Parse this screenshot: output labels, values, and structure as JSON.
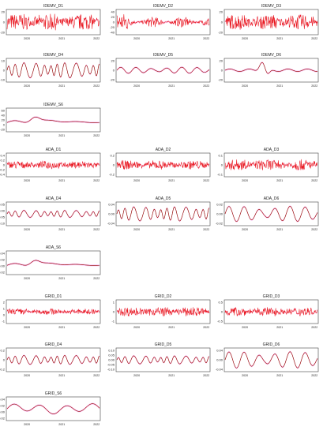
{
  "colors": {
    "signal": "#e8121a",
    "trend": "#5a1200",
    "band": "#f07cf0",
    "frame": "#444444",
    "text": "#222222"
  },
  "chart_data": [
    {
      "type": "line",
      "title": "IDEMV_D1",
      "yticks": [
        "20",
        "0",
        "-20"
      ],
      "ylim": [
        -20,
        20
      ],
      "xticks": [
        "2020",
        "2021",
        "2022"
      ],
      "style": "noise",
      "amplitude": 0.75
    },
    {
      "type": "line",
      "title": "IDEMV_D2",
      "yticks": [
        "40",
        "20",
        "0",
        "-20",
        "-40"
      ],
      "ylim": [
        -40,
        40
      ],
      "xticks": [
        "2020",
        "2021",
        "2022"
      ],
      "style": "decay",
      "amplitude": 0.8
    },
    {
      "type": "line",
      "title": "IDEMV_D3",
      "yticks": [
        "20",
        "0",
        "-20"
      ],
      "ylim": [
        -20,
        20
      ],
      "xticks": [
        "2020",
        "2021",
        "2022"
      ],
      "style": "noise",
      "amplitude": 0.7
    },
    {
      "type": "line",
      "title": "IDEMV_D4",
      "yticks": [
        "10",
        "0",
        "-10"
      ],
      "ylim": [
        -10,
        10
      ],
      "xticks": [
        "2020",
        "2021",
        "2022"
      ],
      "style": "osc",
      "amplitude": 0.75
    },
    {
      "type": "line",
      "title": "IDEMV_D5",
      "yticks": [
        "20",
        "0",
        "-20"
      ],
      "ylim": [
        -20,
        20
      ],
      "xticks": [
        "2020",
        "2021",
        "2022"
      ],
      "style": "wave",
      "amplitude": 0.3
    },
    {
      "type": "line",
      "title": "IDEMV_D6",
      "yticks": [
        "20",
        "0",
        "-20"
      ],
      "ylim": [
        -20,
        20
      ],
      "xticks": [
        "2020",
        "2021",
        "2022"
      ],
      "style": "spike",
      "amplitude": 0.85
    },
    {
      "type": "line",
      "title": "IDEMV_S6",
      "yticks": [
        "60",
        "40",
        "20",
        "0",
        "-20"
      ],
      "ylim": [
        -20,
        60
      ],
      "xticks": [
        "2020",
        "2021",
        "2022"
      ],
      "style": "hump",
      "amplitude": 0.6
    },
    {
      "type": "line",
      "title": "ADA_D1",
      "yticks": [
        "0.4",
        "0.2",
        "0",
        "-0.2",
        "-0.4"
      ],
      "ylim": [
        -0.4,
        0.4
      ],
      "xticks": [
        "2020",
        "2021",
        "2022"
      ],
      "style": "noise",
      "amplitude": 0.4
    },
    {
      "type": "line",
      "title": "ADA_D2",
      "yticks": [
        "0.2",
        "0",
        "-0.2"
      ],
      "ylim": [
        -0.2,
        0.2
      ],
      "xticks": [
        "2020",
        "2021",
        "2022"
      ],
      "style": "noise",
      "amplitude": 0.45
    },
    {
      "type": "line",
      "title": "ADA_D3",
      "yticks": [
        "0.1",
        "0",
        "-0.1"
      ],
      "ylim": [
        -0.1,
        0.1
      ],
      "xticks": [
        "2020",
        "2021",
        "2022"
      ],
      "style": "noise",
      "amplitude": 0.55
    },
    {
      "type": "line",
      "title": "ADA_D4",
      "yticks": [
        "0.05",
        "0.00",
        "-0.05",
        "-0.10"
      ],
      "ylim": [
        -0.1,
        0.05
      ],
      "xticks": [
        "2020",
        "2021",
        "2022"
      ],
      "style": "osc",
      "amplitude": 0.35
    },
    {
      "type": "line",
      "title": "ADA_D5",
      "yticks": [
        "0.04",
        "0.00",
        "-0.04"
      ],
      "ylim": [
        -0.04,
        0.04
      ],
      "xticks": [
        "2020",
        "2021",
        "2022"
      ],
      "style": "osc",
      "amplitude": 0.7
    },
    {
      "type": "line",
      "title": "ADA_D6",
      "yticks": [
        "0.02",
        "0.00",
        "-0.02"
      ],
      "ylim": [
        -0.02,
        0.02
      ],
      "xticks": [
        "2020",
        "2021",
        "2022"
      ],
      "style": "wave",
      "amplitude": 0.75
    },
    {
      "type": "line",
      "title": "ADA_S6",
      "yticks": [
        "0.04",
        "0.02",
        "0.00",
        "-0.02"
      ],
      "ylim": [
        -0.02,
        0.04
      ],
      "xticks": [
        "2020",
        "2021",
        "2022"
      ],
      "style": "hump",
      "amplitude": 0.55
    },
    {
      "type": "line",
      "title": "GRID_D1",
      "yticks": [
        "2",
        "1",
        "0",
        "-1"
      ],
      "ylim": [
        -1,
        2
      ],
      "xticks": [
        "2020",
        "2021",
        "2022"
      ],
      "style": "noise",
      "amplitude": 0.3
    },
    {
      "type": "line",
      "title": "GRID_D2",
      "yticks": [
        "1",
        "0",
        "-1"
      ],
      "ylim": [
        -1,
        1
      ],
      "xticks": [
        "2020",
        "2021",
        "2022"
      ],
      "style": "noise",
      "amplitude": 0.45
    },
    {
      "type": "line",
      "title": "GRID_D3",
      "yticks": [
        "0.5",
        "0",
        "-0.5"
      ],
      "ylim": [
        -0.5,
        0.5
      ],
      "xticks": [
        "2020",
        "2021",
        "2022"
      ],
      "style": "noise",
      "amplitude": 0.45
    },
    {
      "type": "line",
      "title": "GRID_D4",
      "yticks": [
        "0.2",
        "0",
        "-0.2"
      ],
      "ylim": [
        -0.2,
        0.2
      ],
      "xticks": [
        "2020",
        "2021",
        "2022"
      ],
      "style": "osc",
      "amplitude": 0.45
    },
    {
      "type": "line",
      "title": "GRID_D5",
      "yticks": [
        "0.10",
        "0.05",
        "0.00",
        "-0.05",
        "-0.10"
      ],
      "ylim": [
        -0.1,
        0.1
      ],
      "xticks": [
        "2020",
        "2021",
        "2022"
      ],
      "style": "osc",
      "amplitude": 0.4
    },
    {
      "type": "line",
      "title": "GRID_D6",
      "yticks": [
        "0.04",
        "0.00",
        "-0.04"
      ],
      "ylim": [
        -0.04,
        0.04
      ],
      "xticks": [
        "2020",
        "2021",
        "2022"
      ],
      "style": "wave",
      "amplitude": 0.8
    },
    {
      "type": "line",
      "title": "GRID_S6",
      "yticks": [
        "0.04",
        "0.02",
        "0.00",
        "-0.02"
      ],
      "ylim": [
        -0.02,
        0.04
      ],
      "xticks": [
        "2020",
        "2021",
        "2022"
      ],
      "style": "hump2",
      "amplitude": 0.6
    }
  ]
}
